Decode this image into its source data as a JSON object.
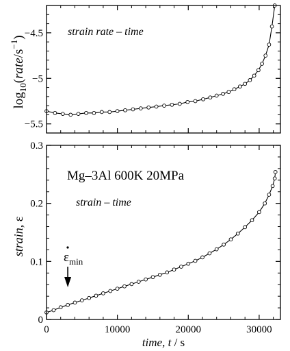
{
  "chart_data": [
    {
      "type": "line",
      "panel": "top",
      "ylabel": {
        "prefix": "log",
        "sub": "10",
        "open": "(",
        "var": "rate",
        "slash": "/s",
        "sup": "−1",
        "close": ")"
      },
      "annotation": "strain rate – time",
      "xlim": [
        0,
        33000
      ],
      "ylim": [
        -5.6,
        -4.2
      ],
      "yticks": [
        -5.5,
        -5,
        -4.5
      ],
      "ytick_labels": [
        "−5.5",
        "−5",
        "−4.5"
      ],
      "series": [
        {
          "marker": "open-circle",
          "x": [
            0,
            1200,
            2300,
            3400,
            4500,
            5600,
            6700,
            7800,
            8900,
            10000,
            11100,
            12200,
            13300,
            14400,
            15500,
            16600,
            17700,
            18800,
            19900,
            21000,
            22100,
            23100,
            24000,
            24900,
            25700,
            26500,
            27300,
            28000,
            28700,
            29300,
            29900,
            30400,
            30900,
            31400,
            31800,
            32200
          ],
          "y": [
            -5.36,
            -5.38,
            -5.39,
            -5.4,
            -5.39,
            -5.38,
            -5.38,
            -5.37,
            -5.37,
            -5.36,
            -5.35,
            -5.34,
            -5.33,
            -5.32,
            -5.31,
            -5.3,
            -5.29,
            -5.28,
            -5.26,
            -5.25,
            -5.23,
            -5.21,
            -5.19,
            -5.17,
            -5.15,
            -5.12,
            -5.09,
            -5.06,
            -5.02,
            -4.97,
            -4.91,
            -4.84,
            -4.75,
            -4.63,
            -4.43,
            -4.2
          ]
        }
      ]
    },
    {
      "type": "line",
      "panel": "bottom",
      "title": "Mg–3Al 600K 20MPa",
      "annotation": "strain – time",
      "min_rate_label": {
        "base": "ε",
        "sub": "min"
      },
      "xlabel": {
        "var": "time, t",
        "unit": " / s"
      },
      "ylabel": {
        "var": "strain, ",
        "sym": "ε"
      },
      "xlim": [
        0,
        33000
      ],
      "ylim": [
        0,
        0.3
      ],
      "xticks": [
        0,
        10000,
        20000,
        30000
      ],
      "xtick_labels": [
        "0",
        "10000",
        "20000",
        "30000"
      ],
      "yticks": [
        0,
        0.1,
        0.2,
        0.3
      ],
      "ytick_labels": [
        "0",
        "0.1",
        "0.2",
        "0.3"
      ],
      "arrow_x": 3000,
      "series": [
        {
          "marker": "open-circle",
          "x": [
            0,
            1000,
            2000,
            3000,
            4000,
            5000,
            6000,
            7000,
            8000,
            9000,
            10000,
            11000,
            12000,
            13000,
            14000,
            15000,
            16000,
            17000,
            18000,
            19000,
            20000,
            21000,
            22000,
            23000,
            24000,
            25000,
            26000,
            27000,
            28000,
            29000,
            30000,
            30800,
            31400,
            31900,
            32200,
            32300
          ],
          "y": [
            0.012,
            0.016,
            0.021,
            0.025,
            0.029,
            0.033,
            0.037,
            0.041,
            0.045,
            0.049,
            0.053,
            0.057,
            0.061,
            0.065,
            0.069,
            0.073,
            0.077,
            0.081,
            0.086,
            0.091,
            0.096,
            0.101,
            0.107,
            0.114,
            0.121,
            0.129,
            0.138,
            0.148,
            0.159,
            0.171,
            0.185,
            0.2,
            0.215,
            0.23,
            0.243,
            0.254
          ]
        }
      ]
    }
  ]
}
